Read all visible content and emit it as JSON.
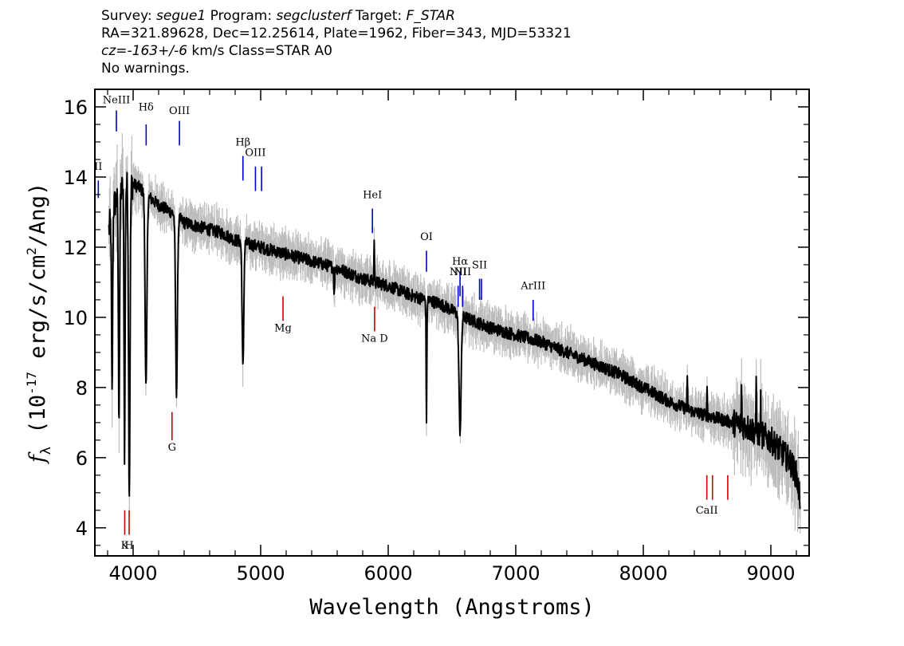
{
  "header": {
    "survey_label": "Survey:",
    "survey": "segue1",
    "program_label": "Program:",
    "program": "segclusterf",
    "target_label": "Target:",
    "target": "F_STAR",
    "line2": "RA=321.89628, Dec=12.25614, Plate=1962, Fiber=343, MJD=53321",
    "cz": "cz=-163+/-6",
    "line3_rest": " km/s Class=STAR A0",
    "line4": "No warnings."
  },
  "chart_data": {
    "type": "line",
    "title": "",
    "xlabel": "Wavelength (Angstroms)",
    "ylabel_prefix": "f",
    "ylabel_sub": "λ",
    "ylabel_mid": " (10",
    "ylabel_exp": "-17",
    "ylabel_rest1": " erg/s/cm",
    "ylabel_exp2": "2",
    "ylabel_rest2": "/Ang)",
    "xlim": [
      3700,
      9300
    ],
    "ylim": [
      3.2,
      16.5
    ],
    "xticks": [
      4000,
      5000,
      6000,
      7000,
      8000,
      9000
    ],
    "xtick_labels": [
      "4000",
      "5000",
      "6000",
      "7000",
      "8000",
      "9000"
    ],
    "yticks": [
      4,
      6,
      8,
      10,
      12,
      14,
      16
    ],
    "ytick_labels": [
      "4",
      "6",
      "8",
      "10",
      "12",
      "14",
      "16"
    ],
    "colors": {
      "flux": "#000000",
      "noise": "#bdbdbd",
      "emission": "#0000cc",
      "absorption": "#cc0000"
    },
    "continuum": [
      [
        3810,
        12.5
      ],
      [
        3850,
        13.2
      ],
      [
        3900,
        13.6
      ],
      [
        3950,
        13.8
      ],
      [
        4000,
        13.8
      ],
      [
        4050,
        13.7
      ],
      [
        4100,
        13.5
      ],
      [
        4200,
        13.2
      ],
      [
        4300,
        13.0
      ],
      [
        4400,
        12.7
      ],
      [
        4500,
        12.6
      ],
      [
        4600,
        12.5
      ],
      [
        4700,
        12.4
      ],
      [
        4800,
        12.2
      ],
      [
        4900,
        12.1
      ],
      [
        5000,
        12.0
      ],
      [
        5200,
        11.8
      ],
      [
        5400,
        11.6
      ],
      [
        5600,
        11.4
      ],
      [
        5800,
        11.1
      ],
      [
        6000,
        10.9
      ],
      [
        6200,
        10.6
      ],
      [
        6400,
        10.4
      ],
      [
        6600,
        10.0
      ],
      [
        6800,
        9.7
      ],
      [
        7000,
        9.5
      ],
      [
        7200,
        9.3
      ],
      [
        7400,
        9.0
      ],
      [
        7600,
        8.7
      ],
      [
        7800,
        8.4
      ],
      [
        8000,
        8.0
      ],
      [
        8200,
        7.6
      ],
      [
        8400,
        7.3
      ],
      [
        8600,
        7.1
      ],
      [
        8800,
        6.9
      ],
      [
        9000,
        6.5
      ],
      [
        9100,
        6.1
      ],
      [
        9150,
        5.9
      ],
      [
        9200,
        5.5
      ],
      [
        9230,
        4.8
      ]
    ],
    "absorption_features": [
      {
        "center": 3835,
        "depth": 5.2,
        "width": 6
      },
      {
        "center": 3889,
        "depth": 6.2,
        "width": 7
      },
      {
        "center": 3933,
        "depth": 7.6,
        "width": 6
      },
      {
        "center": 3970,
        "depth": 8.7,
        "width": 8
      },
      {
        "center": 4101,
        "depth": 5.5,
        "width": 10
      },
      {
        "center": 4340,
        "depth": 5.0,
        "width": 10
      },
      {
        "center": 4861,
        "depth": 3.6,
        "width": 9
      },
      {
        "center": 5577,
        "depth": 0.8,
        "width": 4
      },
      {
        "center": 6300,
        "depth": 3.4,
        "width": 4
      },
      {
        "center": 6563,
        "depth": 3.3,
        "width": 12
      }
    ],
    "emission_spikes": [
      {
        "center": 5890,
        "height": 1.3,
        "width": 3
      },
      {
        "center": 8345,
        "height": 0.8,
        "width": 3
      },
      {
        "center": 8500,
        "height": 0.9,
        "width": 3
      },
      {
        "center": 8770,
        "height": 1.1,
        "width": 3
      },
      {
        "center": 8885,
        "height": 1.2,
        "width": 3
      },
      {
        "center": 8920,
        "height": 0.9,
        "width": 3
      }
    ],
    "emission_lines": [
      {
        "label": "II",
        "x": 3727,
        "y1": 13.4,
        "y2": 13.9,
        "label_y": 14.2
      },
      {
        "label": "NeIII",
        "x": 3869,
        "y1": 15.3,
        "y2": 15.9,
        "label_y": 16.1
      },
      {
        "label": "Hδ",
        "x": 4102,
        "y1": 14.9,
        "y2": 15.5,
        "label_y": 15.9
      },
      {
        "label": "OIII",
        "x": 4363,
        "y1": 14.9,
        "y2": 15.6,
        "label_y": 15.8
      },
      {
        "label": "Hβ",
        "x": 4861,
        "y1": 13.9,
        "y2": 14.6,
        "label_y": 14.9
      },
      {
        "label": "OIII",
        "x": 4959,
        "y1": 13.6,
        "y2": 14.3,
        "label_y": 14.6
      },
      {
        "label": "OIII",
        "x": 5007,
        "y1": 13.6,
        "y2": 14.3,
        "label_y": null
      },
      {
        "label": "HeI",
        "x": 5876,
        "y1": 12.4,
        "y2": 13.1,
        "label_y": 13.4
      },
      {
        "label": "OI",
        "x": 6300,
        "y1": 11.3,
        "y2": 11.9,
        "label_y": 12.2
      },
      {
        "label": "NII",
        "x": 6548,
        "y1": 10.3,
        "y2": 10.9,
        "label_y": 11.2
      },
      {
        "label": "Hα",
        "x": 6563,
        "y1": 10.6,
        "y2": 11.3,
        "label_y": 11.5
      },
      {
        "label": "NII",
        "x": 6583,
        "y1": 10.3,
        "y2": 10.9,
        "label_y": 11.2
      },
      {
        "label": "SII",
        "x": 6716,
        "y1": 10.5,
        "y2": 11.1,
        "label_y": 11.4
      },
      {
        "label": "SII",
        "x": 6731,
        "y1": 10.5,
        "y2": 11.1,
        "label_y": null
      },
      {
        "label": "ArIII",
        "x": 7136,
        "y1": 9.9,
        "y2": 10.5,
        "label_y": 10.8
      }
    ],
    "absorption_lines": [
      {
        "label": "K",
        "x": 3934,
        "y1": 3.8,
        "y2": 4.5,
        "label_y": 3.4
      },
      {
        "label": "H",
        "x": 3969,
        "y1": 3.8,
        "y2": 4.5,
        "label_y": 3.4
      },
      {
        "label": "G",
        "x": 4305,
        "y1": 6.5,
        "y2": 7.3,
        "label_y": 6.2
      },
      {
        "label": "Mg",
        "x": 5175,
        "y1": 9.9,
        "y2": 10.6,
        "label_y": 9.6
      },
      {
        "label": "Na D",
        "x": 5893,
        "y1": 9.6,
        "y2": 10.3,
        "label_y": 9.3
      },
      {
        "label": "CaII",
        "x": 8498,
        "y1": 4.8,
        "y2": 5.5,
        "label_y": 4.4
      },
      {
        "label": "CaII",
        "x": 8542,
        "y1": 4.8,
        "y2": 5.5,
        "label_y": null
      },
      {
        "label": "CaII",
        "x": 8662,
        "y1": 4.8,
        "y2": 5.5,
        "label_y": null
      }
    ]
  }
}
